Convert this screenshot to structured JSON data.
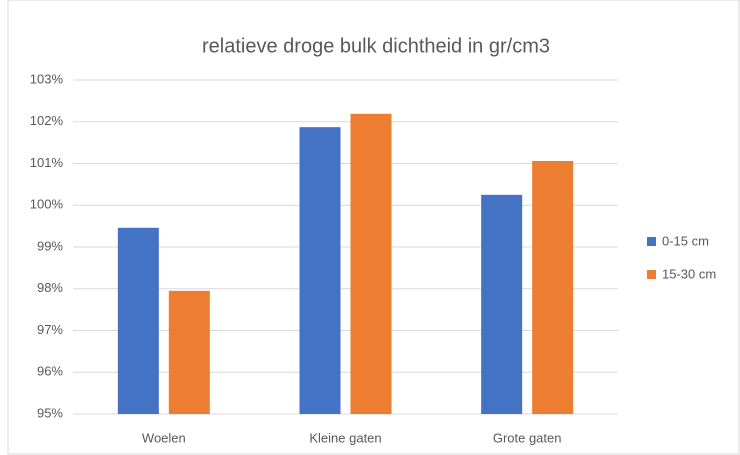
{
  "chart_data": {
    "type": "bar",
    "title": "relatieve droge bulk dichtheid in gr/cm3",
    "categories": [
      "Woelen",
      "Kleine gaten",
      "Grote gaten"
    ],
    "series": [
      {
        "name": "0-15 cm",
        "color": "#4472c4",
        "values": [
          99.46,
          101.87,
          100.25
        ]
      },
      {
        "name": "15-30 cm",
        "color": "#ed7d31",
        "values": [
          97.95,
          102.19,
          101.06
        ]
      }
    ],
    "ylim": [
      95,
      103
    ],
    "yticks": [
      {
        "value": 95,
        "label": "95%"
      },
      {
        "value": 96,
        "label": "96%"
      },
      {
        "value": 97,
        "label": "97%"
      },
      {
        "value": 98,
        "label": "98%"
      },
      {
        "value": 99,
        "label": "99%"
      },
      {
        "value": 100,
        "label": "100%"
      },
      {
        "value": 101,
        "label": "101%"
      },
      {
        "value": 102,
        "label": "102%"
      },
      {
        "value": 103,
        "label": "103%"
      }
    ],
    "grid": true,
    "legend": "right"
  }
}
